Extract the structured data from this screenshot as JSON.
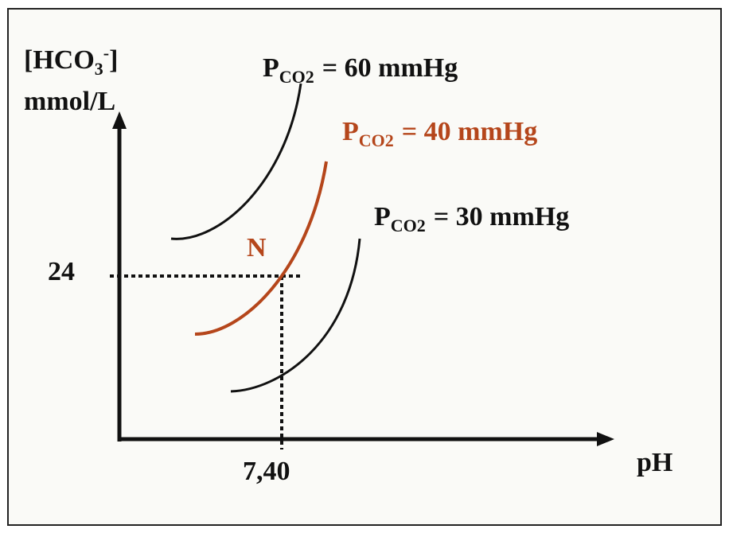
{
  "y_axis": {
    "label": {
      "prefix": "[HCO",
      "sub": "3",
      "sup": "-",
      "suffix": "]"
    },
    "unit": "mmol/L",
    "tick": "24"
  },
  "x_axis": {
    "label": "pH",
    "tick": "7,40"
  },
  "point": "N",
  "curves": [
    {
      "symbol": "P",
      "subscript": "CO2",
      "text": "= 60 mmHg"
    },
    {
      "symbol": "P",
      "subscript": "CO2",
      "text": "= 40 mmHg"
    },
    {
      "symbol": "P",
      "subscript": "CO2",
      "text": "= 30 mmHg"
    }
  ]
}
